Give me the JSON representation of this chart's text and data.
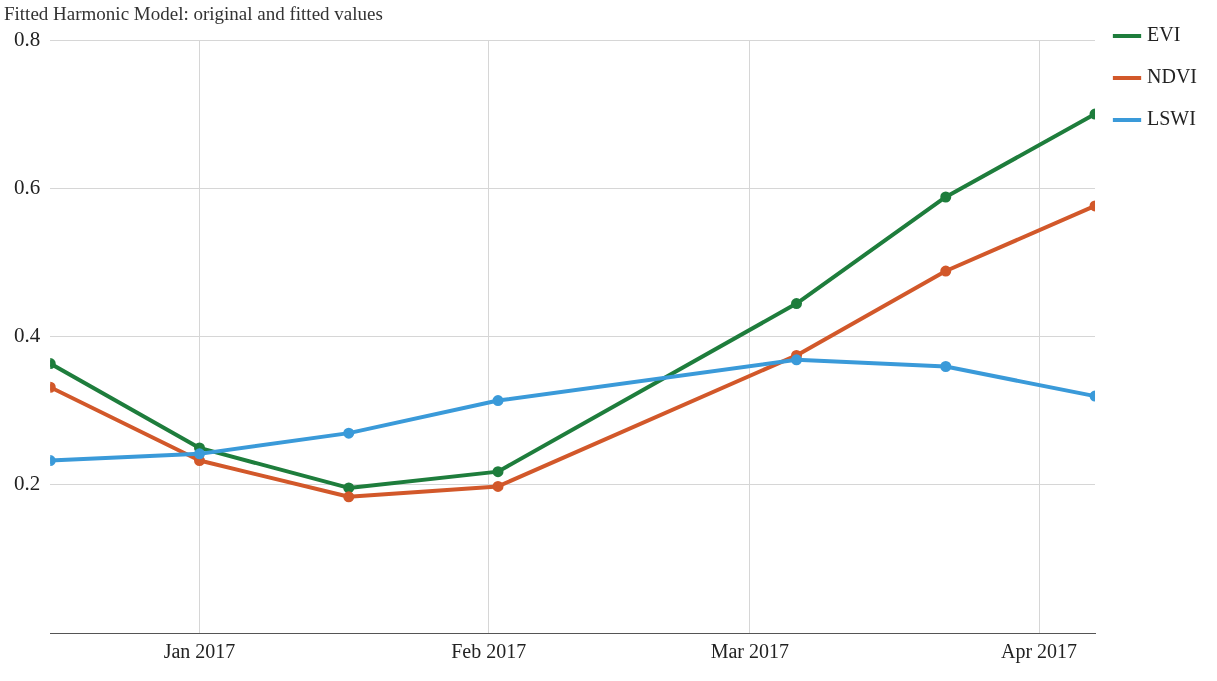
{
  "chart_data": {
    "type": "line",
    "title": "Fitted Harmonic Model: original and fitted values",
    "x": [
      "2016-12-16",
      "2017-01-01",
      "2017-01-17",
      "2017-02-02",
      "2017-03-06",
      "2017-03-22",
      "2017-04-07"
    ],
    "series": [
      {
        "name": "EVI",
        "color": "#1e7d3c",
        "values": [
          0.364,
          0.25,
          0.196,
          0.218,
          0.445,
          0.589,
          0.701
        ]
      },
      {
        "name": "NDVI",
        "color": "#d2582a",
        "values": [
          0.332,
          0.233,
          0.184,
          0.198,
          0.375,
          0.489,
          0.577
        ]
      },
      {
        "name": "LSWI",
        "color": "#3a9ad9",
        "values": [
          0.233,
          0.242,
          0.27,
          0.314,
          0.369,
          0.36,
          0.32
        ]
      }
    ],
    "xlim": [
      "2016-12-16",
      "2017-04-07"
    ],
    "xticks": [
      {
        "value": "2017-01-01",
        "label": "Jan 2017"
      },
      {
        "value": "2017-02-01",
        "label": "Feb 2017"
      },
      {
        "value": "2017-03-01",
        "label": "Mar 2017"
      },
      {
        "value": "2017-04-01",
        "label": "Apr 2017"
      }
    ],
    "ylim": [
      0,
      0.8
    ],
    "yticks": [
      0.2,
      0.4,
      0.6,
      0.8
    ],
    "grid": true,
    "legend": "top right",
    "marker": "circle",
    "line_style": "solid"
  }
}
